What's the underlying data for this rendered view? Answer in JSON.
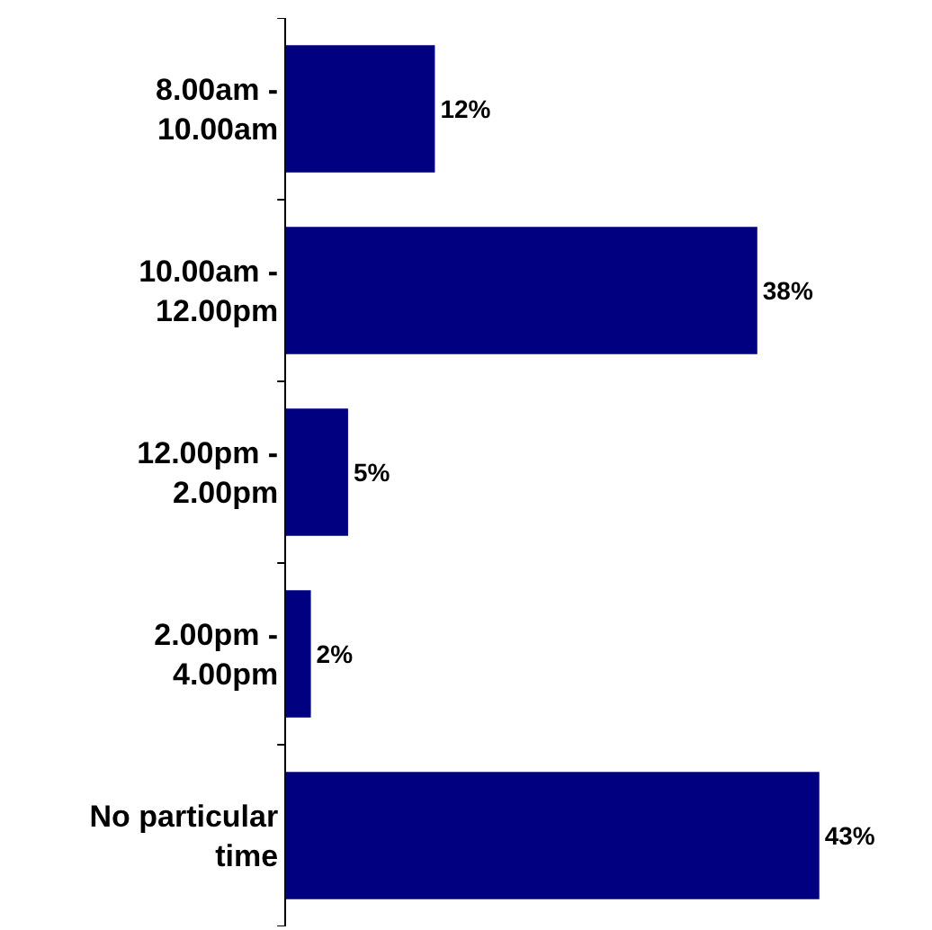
{
  "chart_data": {
    "type": "bar",
    "orientation": "horizontal",
    "categories": [
      "8.00am -\n10.00am",
      "10.00am -\n12.00pm",
      "12.00pm -\n2.00pm",
      "2.00pm -\n4.00pm",
      "No particular\ntime"
    ],
    "values": [
      12,
      38,
      5,
      2,
      43
    ],
    "value_labels": [
      "12%",
      "38%",
      "5%",
      "2%",
      "43%"
    ],
    "color": "#000080"
  }
}
